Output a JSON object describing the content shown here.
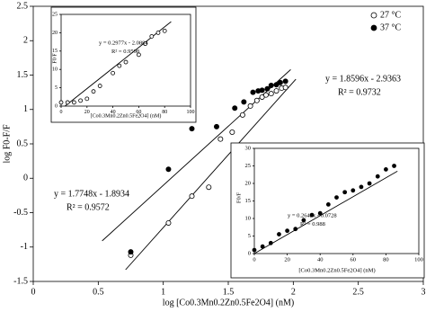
{
  "chart_data": [
    {
      "type": "scatter",
      "xlabel": "log [Co0.3Mn0.2Zn0.5Fe2O4] (nM)",
      "ylabel": "log F0-F/F",
      "xlim": [
        0,
        3
      ],
      "ylim": [
        -1.5,
        2.5
      ],
      "xticks": [
        0,
        0.5,
        1,
        1.5,
        2,
        2.5,
        3
      ],
      "yticks": [
        -1.5,
        -1,
        -0.5,
        0,
        0.5,
        1,
        1.5,
        2,
        2.5
      ],
      "legend": "upper right",
      "series": [
        {
          "name": "27 °C",
          "color": "#000000",
          "marker": "open",
          "x": [
            0.75,
            1.04,
            1.22,
            1.35,
            1.44,
            1.53,
            1.61,
            1.67,
            1.72,
            1.76,
            1.79,
            1.83,
            1.87,
            1.91,
            1.94
          ],
          "values": [
            -1.12,
            -0.65,
            -0.26,
            -0.13,
            0.57,
            0.67,
            0.92,
            1.05,
            1.13,
            1.18,
            1.21,
            1.23,
            1.27,
            1.31,
            1.32
          ]
        },
        {
          "name": "37 °C",
          "color": "#000000",
          "marker": "filled",
          "x": [
            0.75,
            1.04,
            1.22,
            1.41,
            1.55,
            1.62,
            1.69,
            1.73,
            1.76,
            1.8,
            1.83,
            1.87,
            1.9,
            1.94
          ],
          "values": [
            -1.07,
            0.13,
            0.72,
            0.75,
            1.02,
            1.11,
            1.25,
            1.27,
            1.28,
            1.3,
            1.35,
            1.36,
            1.39,
            1.41
          ]
        }
      ],
      "trendlines": [
        {
          "x": [
            0.53,
            1.98
          ],
          "values": [
            -0.91,
            1.58
          ]
        },
        {
          "x": [
            0.71,
            2.02
          ],
          "values": [
            -1.33,
            1.44
          ]
        }
      ],
      "annotations": [
        [
          "y = 1.8596x - 2.9363",
          "R² = 0.9732"
        ],
        [
          "y = 1.7748x - 1.8934",
          "R² = 0.9572"
        ]
      ]
    },
    {
      "type": "scatter",
      "xlabel": "[Co0.3Mn0.2Zn0.5Fe2O4] (nM)",
      "ylabel": "F0/F",
      "xlim": [
        0,
        100
      ],
      "ylim": [
        0,
        25
      ],
      "xticks": [
        0,
        20,
        40,
        60,
        80,
        100
      ],
      "yticks": [
        0,
        5,
        10,
        15,
        20,
        25
      ],
      "series": [
        {
          "color": "#000000",
          "marker": "open",
          "x": [
            0,
            5,
            10,
            15,
            20,
            25,
            30,
            40,
            45,
            50,
            60,
            65,
            70,
            75,
            80
          ],
          "values": [
            1,
            1,
            1,
            1.5,
            2,
            4,
            5.5,
            9,
            11,
            12,
            14,
            17,
            19,
            20,
            20.5
          ]
        }
      ],
      "trendlines": [
        {
          "x": [
            3,
            85
          ],
          "values": [
            0,
            23
          ]
        }
      ],
      "annotations": [
        [
          "y = 0.2977x - 2.0884",
          "R² = 0.9598"
        ]
      ]
    },
    {
      "type": "scatter",
      "xlabel": "[Co0.3Mn0.2Zn0.5Fe2O4] (nM)",
      "ylabel": "F0/F",
      "xlim": [
        0,
        100
      ],
      "ylim": [
        0,
        30
      ],
      "xticks": [
        0,
        20,
        40,
        60,
        80,
        100
      ],
      "yticks": [
        0,
        5,
        10,
        15,
        20,
        25,
        30
      ],
      "series": [
        {
          "color": "#000000",
          "marker": "filled",
          "x": [
            0,
            5,
            10,
            15,
            20,
            25,
            30,
            35,
            40,
            45,
            50,
            55,
            60,
            65,
            70,
            75,
            80,
            85
          ],
          "values": [
            1,
            2,
            3,
            5.5,
            6.5,
            7,
            9.5,
            11,
            11.5,
            14,
            16,
            17.5,
            18,
            19,
            20,
            22,
            24,
            25
          ]
        }
      ],
      "trendlines": [
        {
          "x": [
            0,
            87
          ],
          "values": [
            0,
            23.5
          ]
        }
      ],
      "annotations": [
        [
          "y = 0.2642x - 0.0728",
          "R² = 0.988"
        ]
      ]
    }
  ]
}
